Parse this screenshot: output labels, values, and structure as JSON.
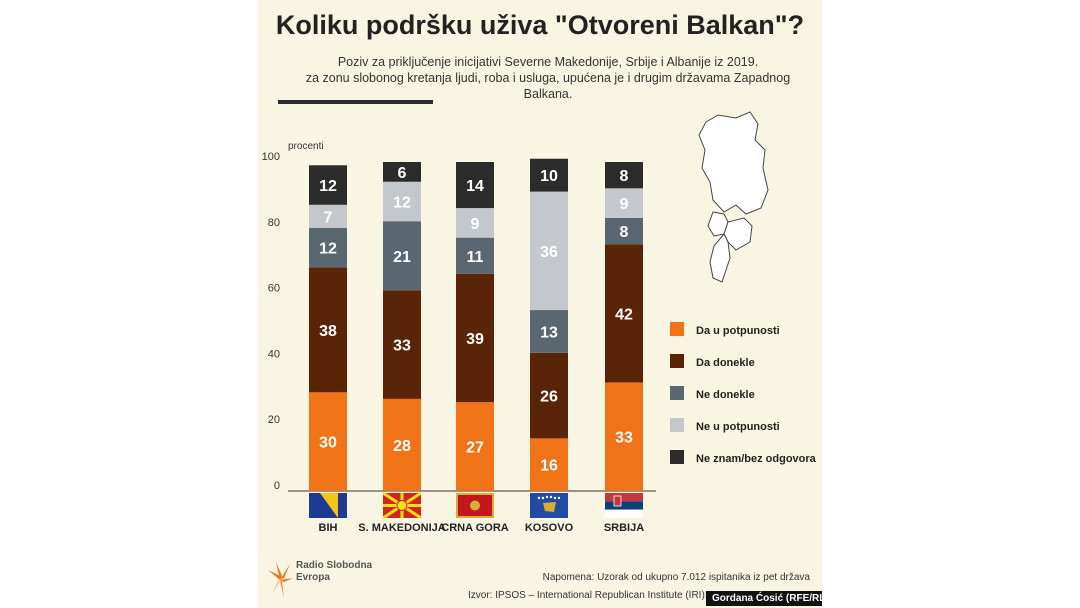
{
  "title": "Koliku podršku uživa \"Otvoreni Balkan\"?",
  "subtitle_line1": "Poziv za priključenje inicijativi Severne Makedonije, Srbije i Albanije iz 2019.",
  "subtitle_line2": "za zonu slobonog kretanja ljudi, roba i usluga, upućena je i drugim državama Zapadnog Balkana.",
  "note": "Napomena: Uzorak od ukupno 7.012 ispitanika iz pet država",
  "source": "Izvor: IPSOS – International Republican Institute (IRI); Is",
  "credit": "Gordana Ćosić (RFE/RL)",
  "logo_text": "Radio Slobodna\nEvropa",
  "colors": {
    "Da u potpunosti": "#f07318",
    "Da donekle": "#5a2408",
    "Ne donekle": "#5b6770",
    "Ne u potpunosti": "#c4c8cc",
    "Ne znam/bez odgovora": "#2b2b2b"
  },
  "chart_data": {
    "type": "bar",
    "stacked": true,
    "ylabel": "procenti",
    "ylim": [
      0,
      100
    ],
    "yticks": [
      0,
      20,
      40,
      60,
      80,
      100
    ],
    "categories": [
      "BIH",
      "S. MAKEDONIJA",
      "CRNA GORA",
      "KOSOVO",
      "SRBIJA"
    ],
    "legend_position": "right",
    "series": [
      {
        "name": "Da u potpunosti",
        "values": [
          30,
          28,
          27,
          16,
          33
        ]
      },
      {
        "name": "Da donekle",
        "values": [
          38,
          33,
          39,
          26,
          42
        ]
      },
      {
        "name": "Ne donekle",
        "values": [
          12,
          21,
          11,
          13,
          8
        ]
      },
      {
        "name": "Ne u potpunosti",
        "values": [
          7,
          12,
          9,
          36,
          9
        ]
      },
      {
        "name": "Ne znam/bez odgovora",
        "values": [
          12,
          6,
          14,
          10,
          8
        ]
      }
    ]
  }
}
